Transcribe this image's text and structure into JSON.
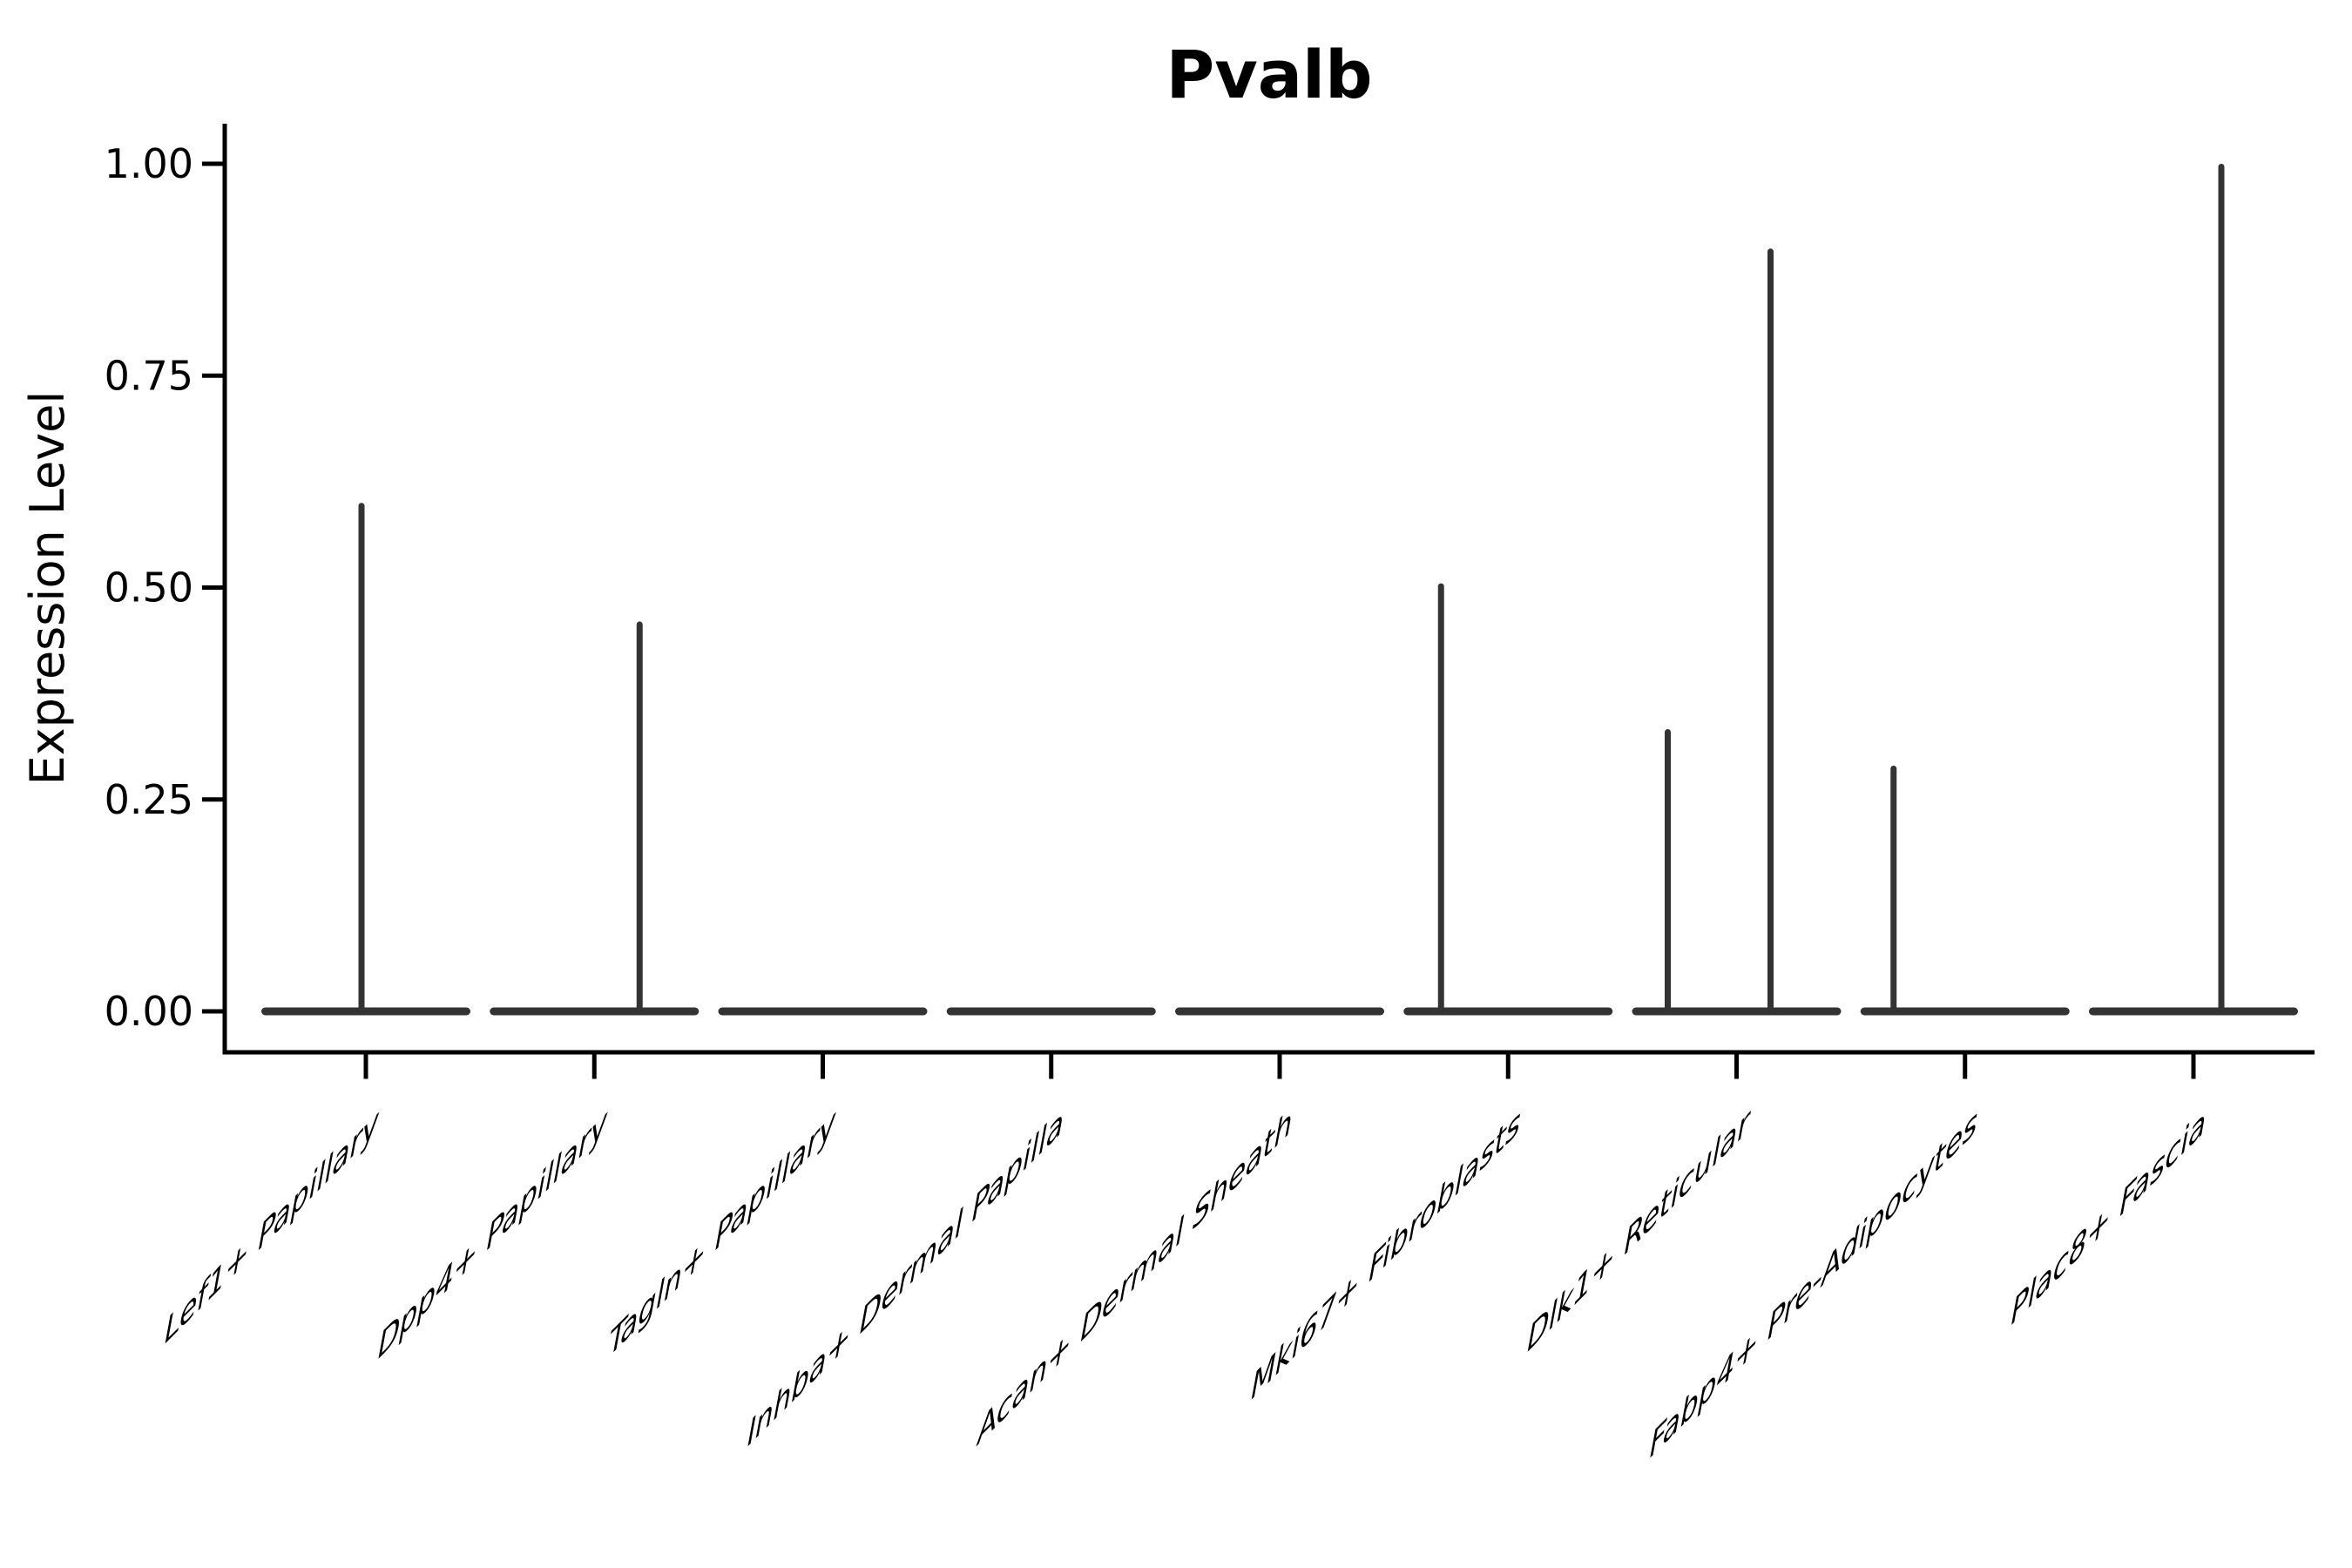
{
  "title": "Pvalb",
  "ylabel": "Expression Level",
  "colors": {
    "background": "#ffffff",
    "axis": "#000000",
    "text": "#000000",
    "violin": "#333333"
  },
  "chart_data": {
    "type": "violin",
    "title": "Pvalb",
    "xlabel": "",
    "ylabel": "Expression Level",
    "ylim": [
      0,
      1.05
    ],
    "grid": false,
    "legend": "none",
    "yticks": {
      "values": [
        0,
        0.25,
        0.5,
        0.75,
        1.0
      ],
      "labels": [
        "0.00",
        "0.25",
        "0.50",
        "0.75",
        "1.00"
      ]
    },
    "categories": [
      "Lef1+ Papillary",
      "Dpp4+ Papillary",
      "Tagln+ Papillary",
      "Inhba+ Dermal Papilla",
      "Acan+ Dermal Sheath",
      "Mki67+ Fibroblasts",
      "Dlk1+ Reticular",
      "Fabp4+ Pre-Adipocytes",
      "Plac8+ Fascia"
    ],
    "violins": [
      {
        "label": "Lef1+ Papillary",
        "base_value": 0.0,
        "max_expression": 0.6,
        "spikes": [
          {
            "dx": -5,
            "value": 0.6
          }
        ]
      },
      {
        "label": "Dpp4+ Papillary",
        "base_value": 0.0,
        "max_expression": 0.46,
        "spikes": [
          {
            "dx": 52,
            "value": 0.46
          }
        ]
      },
      {
        "label": "Tagln+ Papillary",
        "base_value": 0.0,
        "max_expression": 0.0,
        "spikes": []
      },
      {
        "label": "Inhba+ Dermal Papilla",
        "base_value": 0.0,
        "max_expression": 0.0,
        "spikes": []
      },
      {
        "label": "Acan+ Dermal Sheath",
        "base_value": 0.0,
        "max_expression": 0.0,
        "spikes": []
      },
      {
        "label": "Mki67+ Fibroblasts",
        "base_value": 0.0,
        "max_expression": 0.505,
        "spikes": [
          {
            "dx": -77,
            "value": 0.505
          }
        ]
      },
      {
        "label": "Dlk1+ Reticular",
        "base_value": 0.0,
        "max_expression": 0.9,
        "spikes": [
          {
            "dx": -79,
            "value": 0.333
          },
          {
            "dx": 39,
            "value": 0.9
          }
        ]
      },
      {
        "label": "Fabp4+ Pre-Adipocytes",
        "base_value": 0.0,
        "max_expression": 0.29,
        "spikes": [
          {
            "dx": -82,
            "value": 0.29
          }
        ]
      },
      {
        "label": "Plac8+ Fascia",
        "base_value": 0.0,
        "max_expression": 1.0,
        "spikes": [
          {
            "dx": 32,
            "value": 1.0
          }
        ]
      }
    ]
  }
}
